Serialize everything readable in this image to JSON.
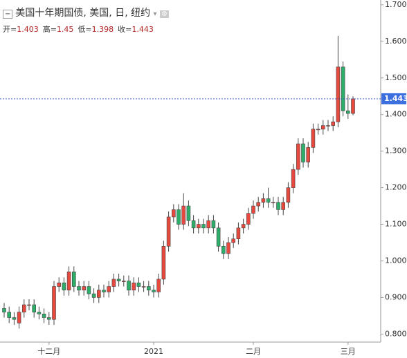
{
  "chart_data": {
    "type": "candlestick",
    "title": "美国十年期国债, 美国, 日, 纽约",
    "summary": [
      {
        "label": "开=",
        "value": 1.403
      },
      {
        "label": "高=",
        "value": 1.45
      },
      {
        "label": "低=",
        "value": 1.398
      },
      {
        "label": "收=",
        "value": 1.443
      }
    ],
    "categories": [
      null,
      null,
      null,
      null,
      null,
      null,
      null,
      null,
      null,
      "十二月",
      null,
      null,
      null,
      null,
      null,
      null,
      null,
      null,
      null,
      null,
      null,
      null,
      null,
      null,
      null,
      null,
      null,
      null,
      null,
      null,
      "2021",
      null,
      null,
      null,
      null,
      null,
      null,
      null,
      null,
      null,
      null,
      null,
      null,
      null,
      null,
      null,
      null,
      null,
      null,
      null,
      "二月",
      null,
      null,
      null,
      null,
      null,
      null,
      null,
      null,
      null,
      null,
      null,
      null,
      null,
      null,
      null,
      null,
      null,
      null,
      "三月",
      null
    ],
    "open": [
      0.87,
      0.86,
      0.845,
      0.83,
      0.86,
      0.88,
      0.88,
      0.86,
      0.855,
      0.845,
      0.84,
      0.93,
      0.94,
      0.92,
      0.97,
      0.93,
      0.92,
      0.93,
      0.91,
      0.9,
      0.92,
      0.915,
      0.93,
      0.95,
      0.945,
      0.945,
      0.92,
      0.94,
      0.93,
      0.93,
      0.92,
      0.915,
      0.95,
      1.04,
      1.12,
      1.14,
      1.1,
      1.15,
      1.11,
      1.09,
      1.1,
      1.09,
      1.11,
      1.09,
      1.04,
      1.02,
      1.05,
      1.06,
      1.09,
      1.1,
      1.13,
      1.15,
      1.16,
      1.17,
      1.16,
      1.16,
      1.14,
      1.16,
      1.2,
      1.25,
      1.32,
      1.27,
      1.31,
      1.36,
      1.36,
      1.37,
      1.37,
      1.38,
      1.53,
      1.41,
      1.403
    ],
    "high": [
      0.885,
      0.875,
      0.86,
      0.875,
      0.895,
      0.895,
      0.895,
      0.875,
      0.87,
      0.86,
      0.945,
      0.955,
      0.955,
      0.985,
      0.985,
      0.945,
      0.945,
      0.945,
      0.925,
      0.935,
      0.935,
      0.945,
      0.965,
      0.965,
      0.96,
      0.96,
      0.955,
      0.955,
      0.945,
      0.945,
      0.935,
      0.965,
      1.055,
      1.135,
      1.155,
      1.155,
      1.185,
      1.165,
      1.125,
      1.115,
      1.115,
      1.125,
      1.125,
      1.105,
      1.055,
      1.065,
      1.075,
      1.105,
      1.115,
      1.145,
      1.165,
      1.175,
      1.185,
      1.2,
      1.175,
      1.175,
      1.175,
      1.215,
      1.265,
      1.335,
      1.335,
      1.325,
      1.375,
      1.375,
      1.385,
      1.385,
      1.395,
      1.615,
      1.545,
      1.455,
      1.45
    ],
    "low": [
      0.845,
      0.83,
      0.825,
      0.815,
      0.845,
      0.865,
      0.845,
      0.84,
      0.83,
      0.825,
      0.825,
      0.915,
      0.905,
      0.905,
      0.915,
      0.905,
      0.905,
      0.895,
      0.885,
      0.885,
      0.9,
      0.9,
      0.915,
      0.93,
      0.93,
      0.905,
      0.905,
      0.915,
      0.915,
      0.905,
      0.9,
      0.9,
      0.935,
      1.025,
      1.105,
      1.085,
      1.085,
      1.095,
      1.075,
      1.075,
      1.075,
      1.075,
      1.075,
      1.025,
      1.005,
      1.005,
      1.035,
      1.045,
      1.075,
      1.085,
      1.115,
      1.135,
      1.145,
      1.145,
      1.145,
      1.125,
      1.125,
      1.145,
      1.185,
      1.235,
      1.255,
      1.255,
      1.295,
      1.345,
      1.345,
      1.355,
      1.355,
      1.365,
      1.395,
      1.388,
      1.398
    ],
    "close": [
      0.86,
      0.845,
      0.84,
      0.86,
      0.88,
      0.88,
      0.86,
      0.855,
      0.845,
      0.84,
      0.93,
      0.94,
      0.92,
      0.97,
      0.93,
      0.92,
      0.93,
      0.91,
      0.9,
      0.92,
      0.915,
      0.93,
      0.95,
      0.945,
      0.945,
      0.92,
      0.94,
      0.93,
      0.93,
      0.92,
      0.915,
      0.95,
      1.04,
      1.12,
      1.14,
      1.1,
      1.15,
      1.11,
      1.09,
      1.1,
      1.09,
      1.11,
      1.09,
      1.04,
      1.02,
      1.05,
      1.06,
      1.09,
      1.1,
      1.13,
      1.15,
      1.16,
      1.17,
      1.16,
      1.16,
      1.14,
      1.16,
      1.2,
      1.25,
      1.32,
      1.27,
      1.31,
      1.36,
      1.36,
      1.37,
      1.37,
      1.38,
      1.53,
      1.41,
      1.403,
      1.443
    ],
    "up_color": "#e8493f",
    "down_color": "#2eae6b",
    "ylim": [
      0.778,
      1.713
    ],
    "yticks": [
      {
        "value": 0.8,
        "label": "0.800"
      },
      {
        "value": 0.9,
        "label": "0.900"
      },
      {
        "value": 1.0,
        "label": "1.000"
      },
      {
        "value": 1.1,
        "label": "1.100"
      },
      {
        "value": 1.2,
        "label": "1.200"
      },
      {
        "value": 1.3,
        "label": "1.300"
      },
      {
        "value": 1.4,
        "label": "1.400"
      },
      {
        "value": 1.5,
        "label": "1.500"
      },
      {
        "value": 1.6,
        "label": "1.600"
      },
      {
        "value": 1.7,
        "label": "1.700"
      }
    ]
  }
}
